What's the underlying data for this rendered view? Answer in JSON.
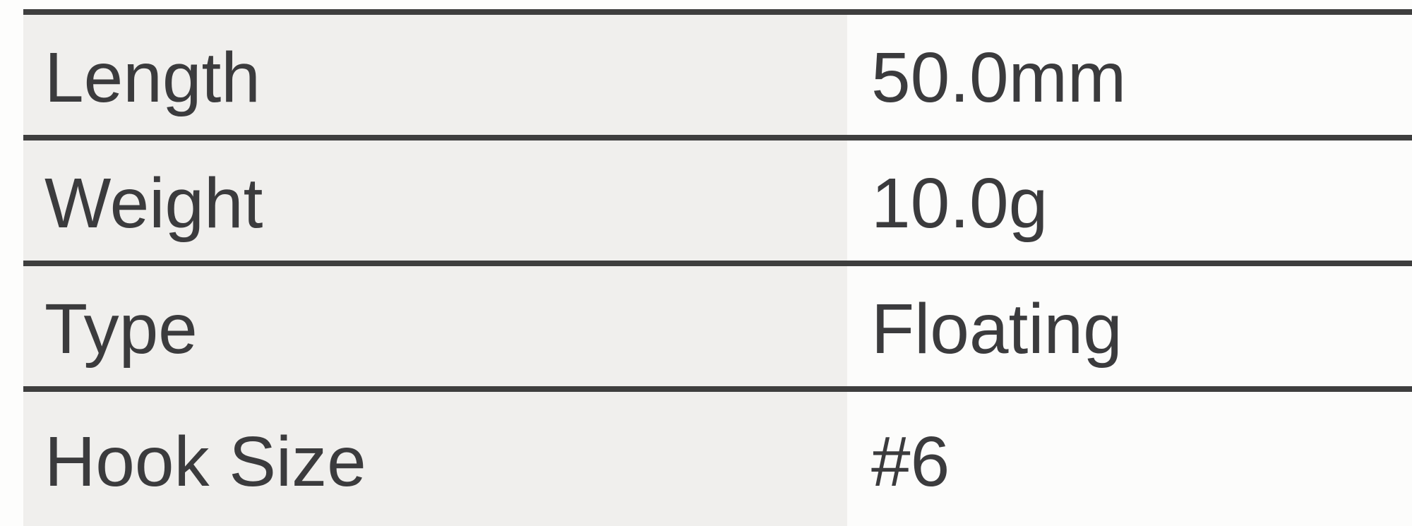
{
  "page": {
    "background": "#fdfdfc"
  },
  "spec_table": {
    "colors": {
      "label_cell_bg": "#f0efed",
      "value_cell_bg": "#fcfcfb",
      "row_border": "#3e3e3e",
      "text": "#3b3b3d"
    },
    "rows": [
      {
        "label": "Length",
        "value": "50.0mm"
      },
      {
        "label": "Weight",
        "value": "10.0g"
      },
      {
        "label": "Type",
        "value": "Floating"
      },
      {
        "label": "Hook Size",
        "value": "#6"
      }
    ]
  }
}
